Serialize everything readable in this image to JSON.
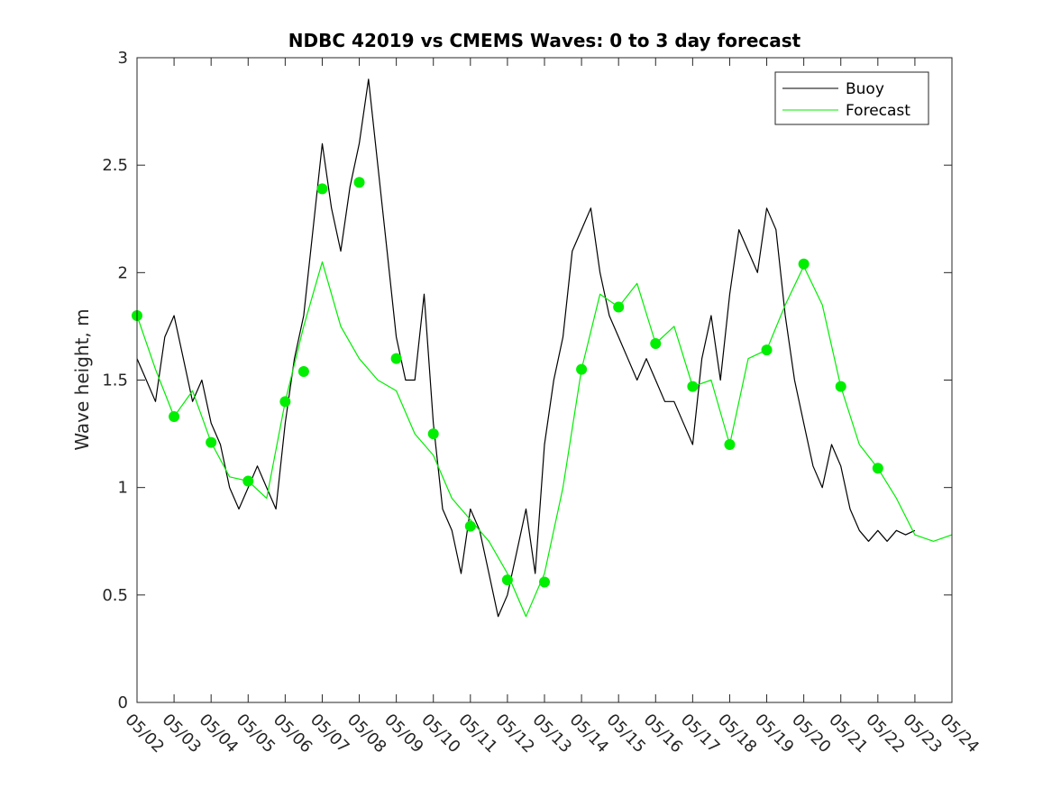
{
  "chart_data": {
    "type": "line",
    "title": "NDBC 42019 vs CMEMS Waves: 0 to 3 day forecast",
    "xlabel": "",
    "ylabel": "Wave height, m",
    "xlim": [
      "05/02",
      "05/24"
    ],
    "ylim": [
      0,
      3
    ],
    "grid": false,
    "legend_position": "top-right",
    "x_tick_labels": [
      "05/02",
      "05/03",
      "05/04",
      "05/05",
      "05/06",
      "05/07",
      "05/08",
      "05/09",
      "05/10",
      "05/11",
      "05/12",
      "05/13",
      "05/14",
      "05/15",
      "05/16",
      "05/17",
      "05/18",
      "05/19",
      "05/20",
      "05/21",
      "05/22",
      "05/23",
      "05/24"
    ],
    "y_ticks": [
      0,
      0.5,
      1,
      1.5,
      2,
      2.5,
      3
    ],
    "y_tick_labels": [
      "0",
      "0.5",
      "1",
      "1.5",
      "2",
      "2.5",
      "3"
    ],
    "colors": {
      "buoy": "#000000",
      "forecast": "#00ee00"
    },
    "series": [
      {
        "name": "Buoy",
        "x": [
          "05/02 00:00",
          "05/02 06:00",
          "05/02 12:00",
          "05/02 18:00",
          "05/03 00:00",
          "05/03 06:00",
          "05/03 12:00",
          "05/03 18:00",
          "05/04 00:00",
          "05/04 06:00",
          "05/04 12:00",
          "05/04 18:00",
          "05/05 00:00",
          "05/05 06:00",
          "05/05 12:00",
          "05/05 18:00",
          "05/06 00:00",
          "05/06 06:00",
          "05/06 12:00",
          "05/06 18:00",
          "05/07 00:00",
          "05/07 06:00",
          "05/07 12:00",
          "05/07 18:00",
          "05/08 00:00",
          "05/08 06:00",
          "05/08 12:00",
          "05/08 18:00",
          "05/09 00:00",
          "05/09 06:00",
          "05/09 12:00",
          "05/09 18:00",
          "05/10 00:00",
          "05/10 06:00",
          "05/10 12:00",
          "05/10 18:00",
          "05/11 00:00",
          "05/11 06:00",
          "05/11 12:00",
          "05/11 18:00",
          "05/12 00:00",
          "05/12 06:00",
          "05/12 12:00",
          "05/12 18:00",
          "05/13 00:00",
          "05/13 06:00",
          "05/13 12:00",
          "05/13 18:00",
          "05/14 00:00",
          "05/14 06:00",
          "05/14 12:00",
          "05/14 18:00",
          "05/15 00:00",
          "05/15 06:00",
          "05/15 12:00",
          "05/15 18:00",
          "05/16 00:00",
          "05/16 06:00",
          "05/16 12:00",
          "05/16 18:00",
          "05/17 00:00",
          "05/17 06:00",
          "05/17 12:00",
          "05/17 18:00",
          "05/18 00:00",
          "05/18 06:00",
          "05/18 12:00",
          "05/18 18:00",
          "05/19 00:00",
          "05/19 06:00",
          "05/19 12:00",
          "05/19 18:00",
          "05/20 00:00",
          "05/20 06:00",
          "05/20 12:00",
          "05/20 18:00",
          "05/21 00:00",
          "05/21 06:00",
          "05/21 12:00",
          "05/21 18:00",
          "05/22 00:00",
          "05/22 06:00",
          "05/22 12:00",
          "05/22 18:00",
          "05/23 00:00"
        ],
        "y": [
          1.6,
          1.5,
          1.4,
          1.7,
          1.8,
          1.6,
          1.4,
          1.5,
          1.3,
          1.2,
          1.0,
          0.9,
          1.0,
          1.1,
          1.0,
          0.9,
          1.3,
          1.6,
          1.8,
          2.2,
          2.6,
          2.3,
          2.1,
          2.4,
          2.6,
          2.9,
          2.5,
          2.1,
          1.7,
          1.5,
          1.5,
          1.9,
          1.3,
          0.9,
          0.8,
          0.6,
          0.9,
          0.8,
          0.6,
          0.4,
          0.5,
          0.7,
          0.9,
          0.6,
          1.2,
          1.5,
          1.7,
          2.1,
          2.2,
          2.3,
          2.0,
          1.8,
          1.7,
          1.6,
          1.5,
          1.6,
          1.5,
          1.4,
          1.4,
          1.3,
          1.2,
          1.6,
          1.8,
          1.5,
          1.9,
          2.2,
          2.1,
          2.0,
          2.3,
          2.2,
          1.8,
          1.5,
          1.3,
          1.1,
          1.0,
          1.2,
          1.1,
          0.9,
          0.8,
          0.75,
          0.8,
          0.75,
          0.8,
          0.78,
          0.8
        ]
      },
      {
        "name": "Forecast",
        "x": [
          "05/02 00:00",
          "05/02 12:00",
          "05/03 00:00",
          "05/03 12:00",
          "05/04 00:00",
          "05/04 12:00",
          "05/05 00:00",
          "05/05 12:00",
          "05/06 00:00",
          "05/06 12:00",
          "05/07 00:00",
          "05/07 12:00",
          "05/08 00:00",
          "05/08 12:00",
          "05/09 00:00",
          "05/09 12:00",
          "05/10 00:00",
          "05/10 12:00",
          "05/11 00:00",
          "05/11 12:00",
          "05/12 00:00",
          "05/12 12:00",
          "05/13 00:00",
          "05/13 12:00",
          "05/14 00:00",
          "05/14 12:00",
          "05/15 00:00",
          "05/15 12:00",
          "05/16 00:00",
          "05/16 12:00",
          "05/17 00:00",
          "05/17 12:00",
          "05/18 00:00",
          "05/18 12:00",
          "05/19 00:00",
          "05/19 12:00",
          "05/20 00:00",
          "05/20 12:00",
          "05/21 00:00",
          "05/21 12:00",
          "05/22 00:00",
          "05/22 12:00",
          "05/23 00:00",
          "05/23 12:00",
          "05/24 00:00"
        ],
        "y": [
          1.8,
          1.55,
          1.33,
          1.45,
          1.21,
          1.05,
          1.03,
          0.95,
          1.4,
          1.75,
          2.05,
          1.75,
          1.6,
          1.5,
          1.45,
          1.25,
          1.15,
          0.95,
          0.85,
          0.75,
          0.6,
          0.4,
          0.6,
          1.0,
          1.55,
          1.9,
          1.84,
          1.95,
          1.67,
          1.75,
          1.47,
          1.5,
          1.2,
          1.6,
          1.64,
          1.85,
          2.03,
          1.85,
          1.47,
          1.2,
          1.09,
          0.95,
          0.78,
          0.75,
          0.78
        ]
      }
    ],
    "forecast_initialization_markers": {
      "x": [
        "05/02",
        "05/03",
        "05/04",
        "05/05",
        "05/06",
        "05/06 12:00",
        "05/07",
        "05/08",
        "05/09",
        "05/10",
        "05/11",
        "05/12",
        "05/13",
        "05/14",
        "05/15",
        "05/16",
        "05/17",
        "05/18",
        "05/19",
        "05/20",
        "05/21",
        "05/22"
      ],
      "y": [
        1.8,
        1.33,
        1.21,
        1.03,
        1.4,
        1.54,
        2.39,
        2.42,
        1.6,
        1.25,
        0.82,
        0.57,
        0.56,
        1.55,
        1.84,
        1.67,
        1.47,
        1.2,
        1.64,
        2.04,
        1.47,
        1.09
      ]
    }
  },
  "legend": {
    "items": [
      "Buoy",
      "Forecast"
    ]
  }
}
